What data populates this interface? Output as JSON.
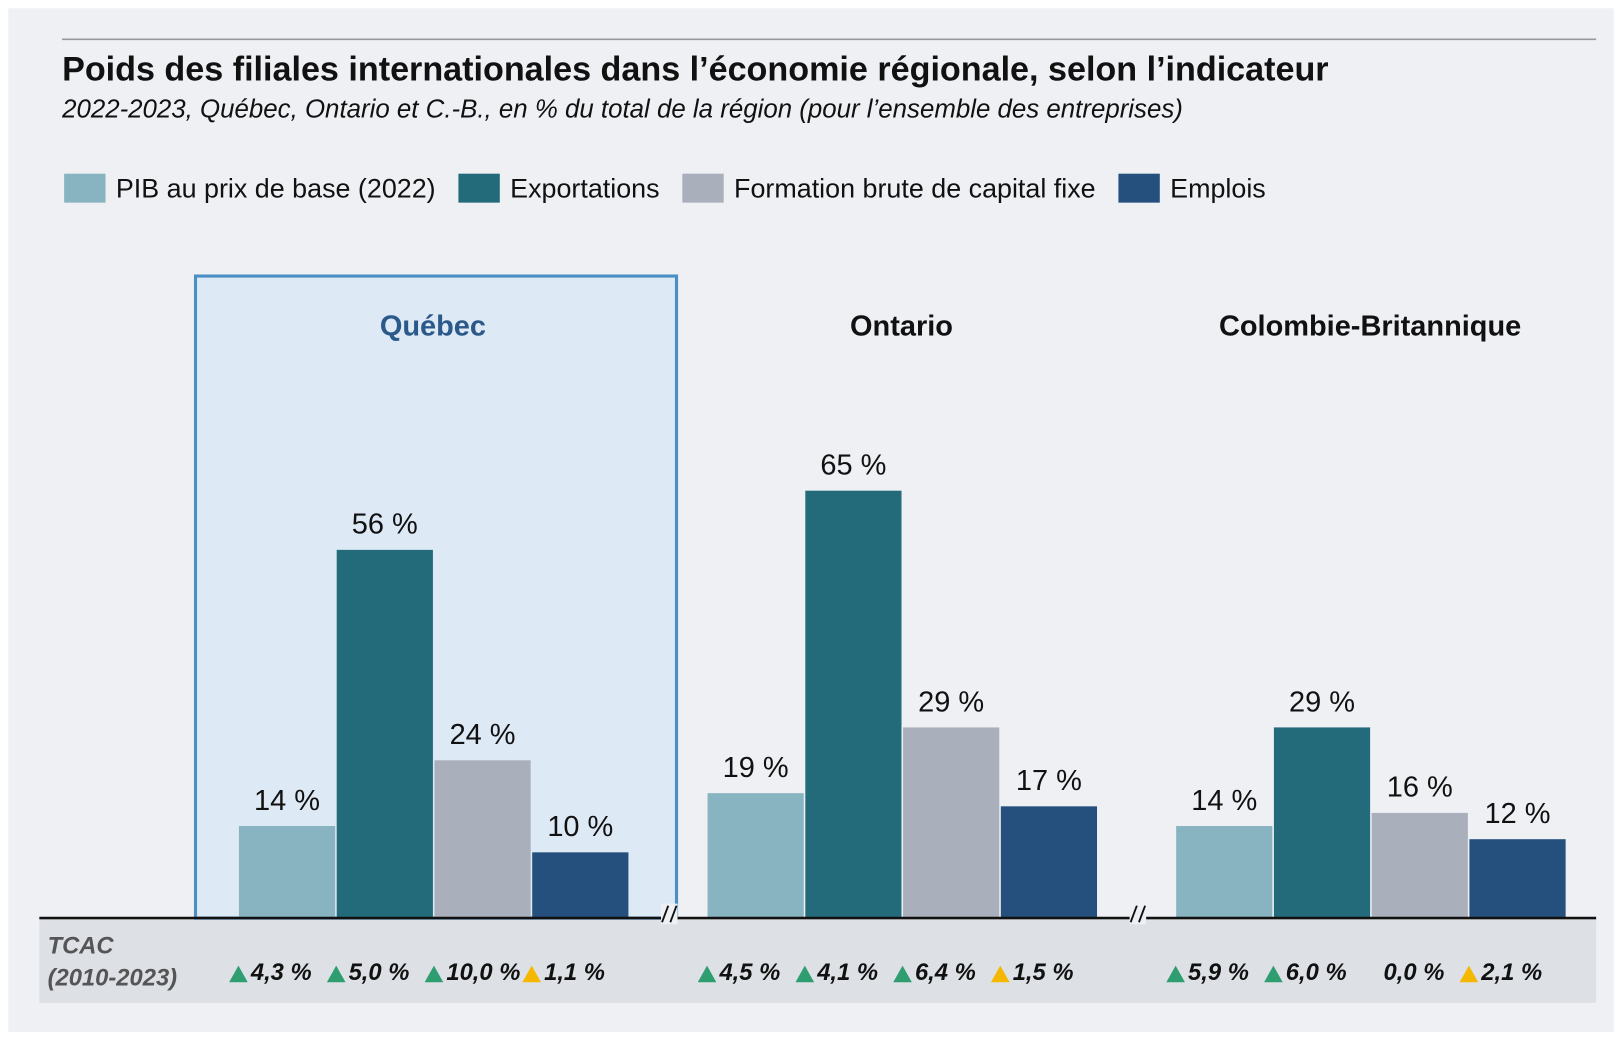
{
  "chart_data": {
    "type": "bar",
    "title": "Poids des filiales internationales dans l’économie régionale, selon l’indicateur",
    "subtitle": "2022-2023, Québec, Ontario et C.-B., en % du total de la région (pour l’ensemble des entreprises)",
    "categories": [
      "Québec",
      "Ontario",
      "Colombie-Britannique"
    ],
    "highlight_index": 0,
    "growth_title": [
      "TCAC",
      "(2010-2023)"
    ],
    "series": [
      {
        "name": "PIB au prix de base (2022)",
        "color": "#88b4c1",
        "values": [
          14,
          19,
          14
        ],
        "value_labels": [
          "14 %",
          "19 %",
          "14 %"
        ],
        "growth": [
          4.3,
          4.5,
          5.9
        ],
        "growth_labels": [
          "4,3 %",
          "4,5 %",
          "5,9 %"
        ],
        "growth_colors": [
          "#2e9e70",
          "#2e9e70",
          "#2e9e70"
        ]
      },
      {
        "name": "Exportations",
        "color": "#236b7a",
        "values": [
          56,
          65,
          29
        ],
        "value_labels": [
          "56 %",
          "65 %",
          "29 %"
        ],
        "growth": [
          5.0,
          4.1,
          6.0
        ],
        "growth_labels": [
          "5,0 %",
          "4,1 %",
          "6,0 %"
        ],
        "growth_colors": [
          "#2e9e70",
          "#2e9e70",
          "#2e9e70"
        ]
      },
      {
        "name": "Formation brute de capital fixe",
        "color": "#a9afbb",
        "values": [
          24,
          29,
          16
        ],
        "value_labels": [
          "24 %",
          "29 %",
          "16 %"
        ],
        "growth": [
          10.0,
          6.4,
          0.0
        ],
        "growth_labels": [
          "10,0 %",
          "6,4 %",
          "0,0 %"
        ],
        "growth_colors": [
          "#2e9e70",
          "#2e9e70",
          null
        ]
      },
      {
        "name": "Emplois",
        "color": "#25507e",
        "values": [
          10,
          17,
          12
        ],
        "value_labels": [
          "10 %",
          "17 %",
          "12 %"
        ],
        "growth": [
          1.1,
          1.5,
          2.1
        ],
        "growth_labels": [
          "1,1 %",
          "1,5 %",
          "2,1 %"
        ],
        "growth_colors": [
          "#f5b800",
          "#f5b800",
          "#f5b800"
        ]
      }
    ]
  }
}
